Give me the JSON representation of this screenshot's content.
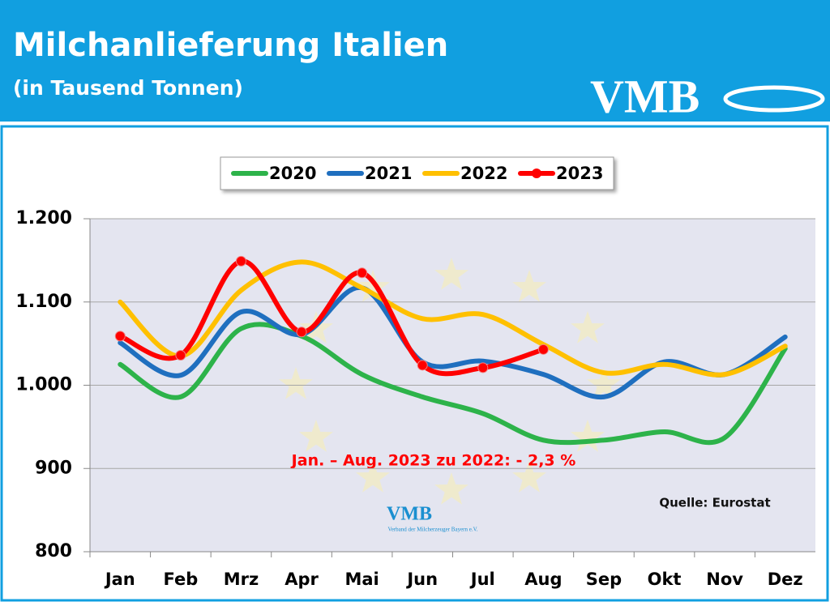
{
  "chart_data": {
    "type": "line",
    "title": "Milchanlieferung Italien",
    "subtitle": "(in Tausend Tonnen)",
    "logo": "VMB",
    "annotation": "Jan. – Aug. 2023 zu 2022: - 2,3 %",
    "source": "Quelle: Eurostat",
    "watermark": {
      "logo": "VMB",
      "text": "Verband der Milcherzeuger Bayern e.V."
    },
    "categories": [
      "Jan",
      "Feb",
      "Mrz",
      "Apr",
      "Mai",
      "Jun",
      "Jul",
      "Aug",
      "Sep",
      "Okt",
      "Nov",
      "Dez"
    ],
    "series": [
      {
        "name": "2020",
        "color": "#2db34a",
        "values": [
          1025,
          986,
          1068,
          1059,
          1013,
          986,
          966,
          934,
          934,
          944,
          937,
          1044
        ]
      },
      {
        "name": "2021",
        "color": "#1f6fbf",
        "values": [
          1051,
          1012,
          1088,
          1061,
          1117,
          1028,
          1029,
          1013,
          986,
          1028,
          1013,
          1058
        ]
      },
      {
        "name": "2022",
        "color": "#ffc000",
        "values": [
          1100,
          1035,
          1114,
          1148,
          1117,
          1080,
          1085,
          1049,
          1015,
          1025,
          1013,
          1047
        ]
      },
      {
        "name": "2023",
        "color": "#ff0000",
        "markers": true,
        "values": [
          1059,
          1036,
          1149,
          1064,
          1135,
          1024,
          1021,
          1043,
          null,
          null,
          null,
          null
        ]
      }
    ],
    "ylim": [
      800,
      1200
    ],
    "yticks": [
      800,
      900,
      {
        "value": 1000,
        "label": "1.000"
      },
      {
        "value": 1100,
        "label": "1.100"
      },
      {
        "value": 1200,
        "label": "1.200"
      }
    ],
    "grid": true,
    "legend": "top"
  }
}
